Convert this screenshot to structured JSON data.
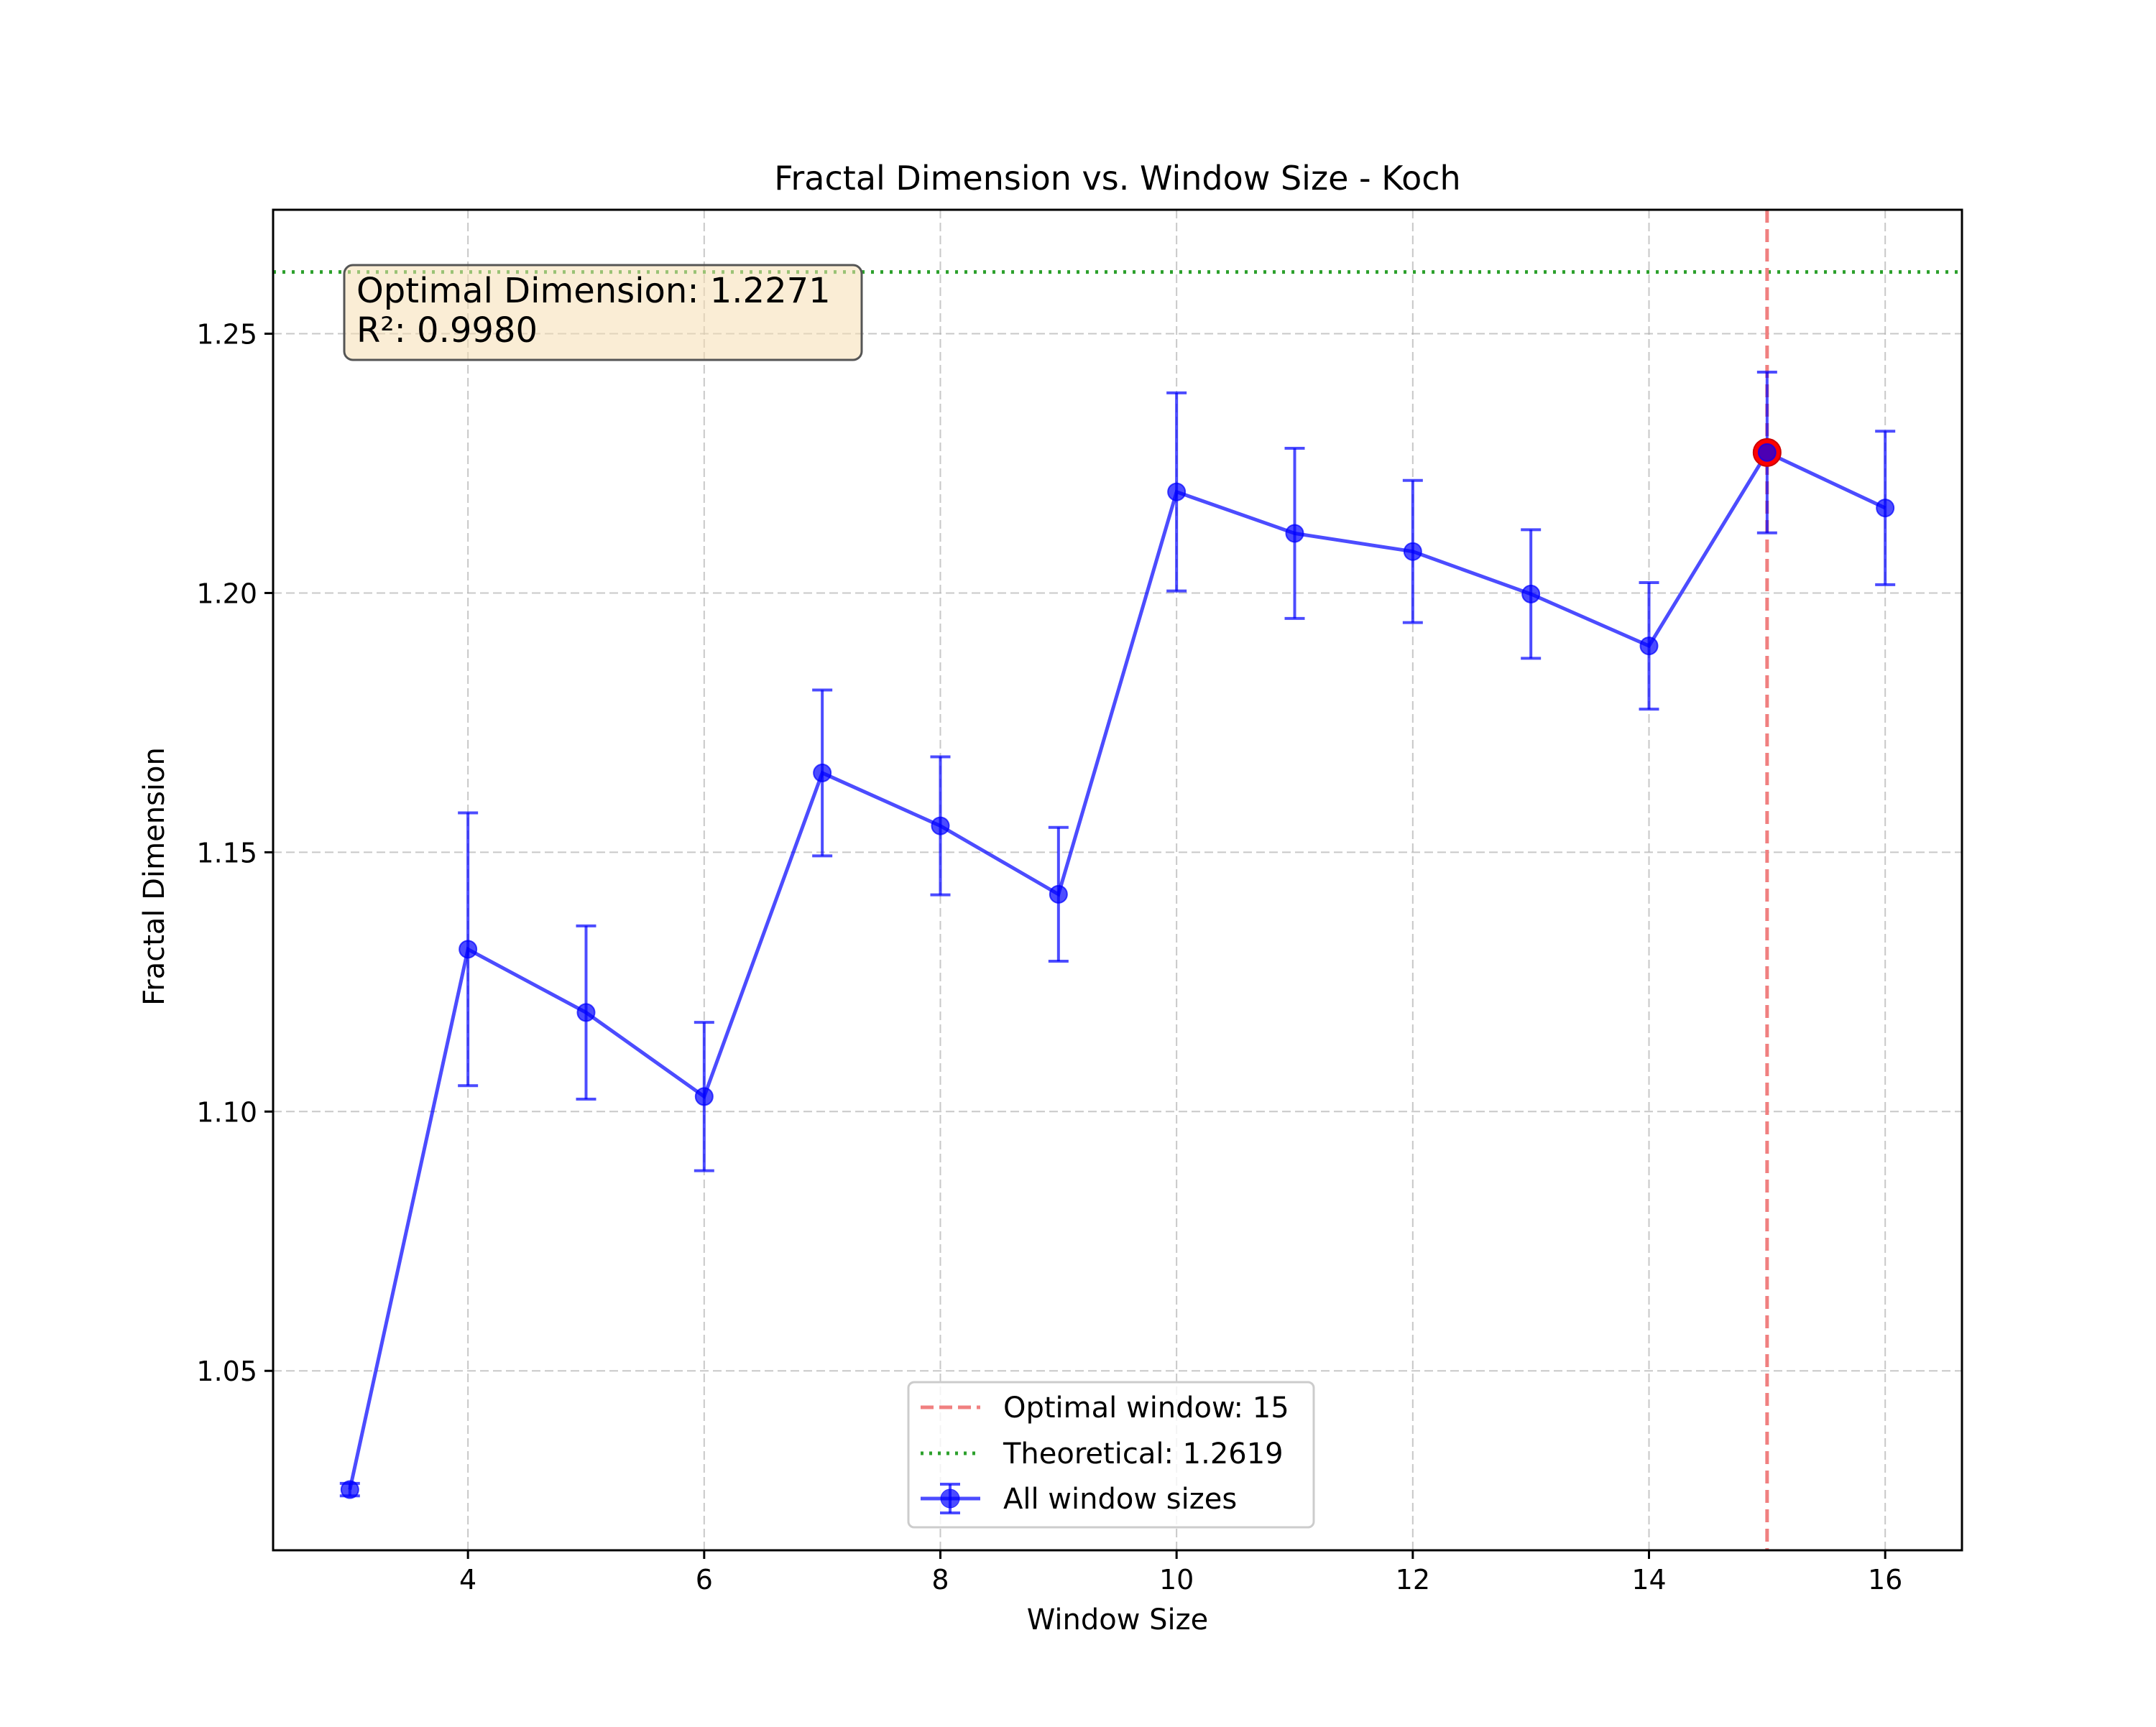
{
  "chart_data": {
    "type": "line",
    "title": "Fractal Dimension vs. Window Size - Koch",
    "xlabel": "Window Size",
    "ylabel": "Fractal Dimension",
    "xlim": [
      2.35,
      16.65
    ],
    "ylim": [
      1.0154,
      1.2739
    ],
    "x_ticks": [
      4,
      6,
      8,
      10,
      12,
      14,
      16
    ],
    "y_ticks": [
      1.05,
      1.1,
      1.15,
      1.2,
      1.25
    ],
    "x_tick_labels": [
      "4",
      "6",
      "8",
      "10",
      "12",
      "14",
      "16"
    ],
    "y_tick_labels": [
      "1.05",
      "1.10",
      "1.15",
      "1.20",
      "1.25"
    ],
    "grid": true,
    "series": [
      {
        "name": "All window sizes",
        "color": "#0000ff",
        "x": [
          3,
          4,
          5,
          6,
          7,
          8,
          9,
          10,
          11,
          12,
          13,
          14,
          15,
          16
        ],
        "y": [
          1.0271,
          1.1313,
          1.1191,
          1.1029,
          1.1653,
          1.1551,
          1.1419,
          1.2195,
          1.2115,
          1.208,
          1.1998,
          1.1898,
          1.2271,
          1.2164
        ],
        "yerr": [
          0.0012,
          0.0263,
          0.0167,
          0.0143,
          0.016,
          0.0133,
          0.0129,
          0.0191,
          0.0164,
          0.0137,
          0.0124,
          0.0122,
          0.0155,
          0.0148
        ]
      }
    ],
    "optimal_window": {
      "label": "Optimal window: 15",
      "x": 15,
      "y": 1.2271,
      "color": "#f08080"
    },
    "theoretical": {
      "label": "Theoretical: 1.2619",
      "y": 1.2619,
      "color": "#2ca02c"
    },
    "annotation": {
      "line1": "Optimal Dimension: 1.2271",
      "line2": "R²: 0.9980"
    },
    "legend_position": "lower-center"
  }
}
